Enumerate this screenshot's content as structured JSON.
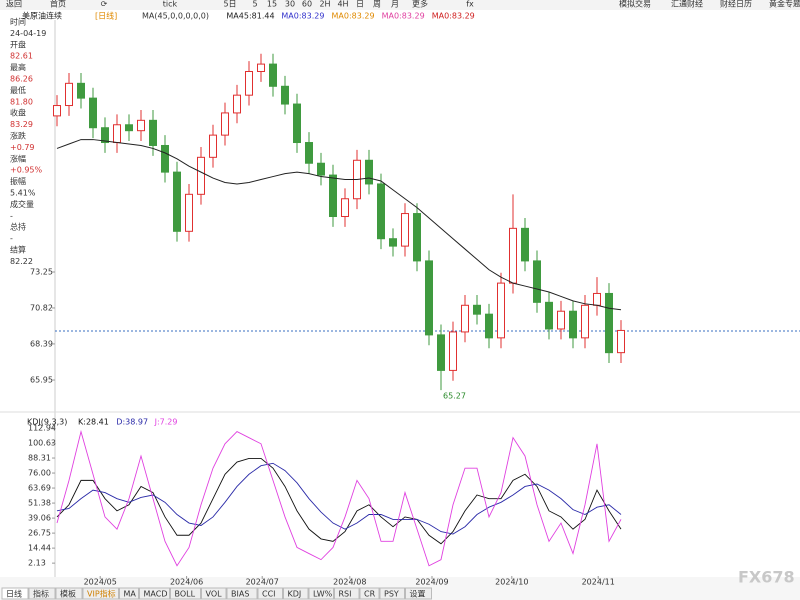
{
  "toolbar": [
    "返回",
    "首页",
    "⟳",
    "tick",
    "5日",
    "5",
    "15",
    "30",
    "60",
    "2H",
    "4H",
    "日",
    "周",
    "月",
    "更多",
    "fx",
    "模拟交易",
    "汇通财经",
    "财经日历",
    "黄金专题"
  ],
  "info": [
    [
      "时间",
      "24-04-19"
    ],
    [
      "开盘",
      "82.61"
    ],
    [
      "最高",
      "86.26"
    ],
    [
      "最低",
      "81.80"
    ],
    [
      "收盘",
      "83.29"
    ],
    [
      "涨跌",
      "+0.79"
    ],
    [
      "涨幅",
      "+0.95%"
    ],
    [
      "振幅",
      "5.41%"
    ],
    [
      "成交量",
      "-"
    ],
    [
      "总持",
      "-"
    ],
    [
      "结算",
      "82.22"
    ]
  ],
  "tabs": [
    "日线",
    "指标",
    "模板",
    "VIP指标",
    "MA",
    "MACD",
    "BOLL",
    "VOL",
    "BIAS",
    "CCI",
    "KDJ",
    "LW%",
    "RSI",
    "CR",
    "PSY",
    "设置"
  ],
  "watermark": "FX678",
  "chart_data": [
    {
      "type": "candlestick",
      "title": "美原油连续",
      "period": "[日线]",
      "legend": [
        {
          "text": "MA(45,0,0,0,0,0)",
          "color": "#333333"
        },
        {
          "text": "MA45:81.44",
          "color": "#222222"
        },
        {
          "text": "MA0:83.29",
          "color": "#3333cc"
        },
        {
          "text": "MA0:83.29",
          "color": "#e08a00"
        },
        {
          "text": "MA0:83.29",
          "color": "#e040a0"
        },
        {
          "text": "MA0:83.29",
          "color": "#d02020"
        }
      ],
      "up_color": "#e03030",
      "down_color": "#3f9a3f",
      "xlim": [
        0,
        62
      ],
      "xticks": [
        {
          "value": 3.6,
          "label": "2024/05"
        },
        {
          "value": 10.8,
          "label": "2024/06"
        },
        {
          "value": 17.1,
          "label": "2024/07"
        },
        {
          "value": 24.4,
          "label": "2024/08"
        },
        {
          "value": 31.25,
          "label": "2024/09"
        },
        {
          "value": 37.9,
          "label": "2024/10"
        },
        {
          "value": 45.1,
          "label": "2024/11"
        }
      ],
      "ylim": [
        64.6,
        90.28
      ],
      "yticks": [
        73.25,
        70.82,
        68.39,
        65.95
      ],
      "open": [
        83.8,
        84.5,
        86.0,
        85.0,
        83.0,
        82.0,
        83.2,
        82.8,
        83.5,
        81.8,
        80.0,
        76.0,
        78.5,
        81.0,
        82.5,
        84.0,
        85.2,
        86.8,
        87.3,
        85.8,
        84.6,
        82.0,
        80.6,
        79.8,
        77.0,
        78.2,
        80.8,
        79.2,
        75.5,
        75.0,
        77.2,
        74.0,
        69.0,
        66.6,
        69.2,
        71.0,
        70.4,
        68.8,
        72.5,
        76.2,
        74.0,
        71.2,
        69.4,
        70.6,
        68.8,
        71.0,
        71.8,
        67.8
      ],
      "high": [
        85.2,
        86.7,
        86.7,
        85.7,
        83.7,
        83.9,
        83.9,
        84.2,
        84.2,
        82.5,
        80.7,
        79.2,
        81.7,
        83.2,
        84.7,
        85.9,
        87.5,
        88.0,
        88.0,
        86.5,
        85.3,
        82.7,
        81.3,
        80.5,
        78.9,
        81.5,
        81.5,
        79.9,
        76.2,
        77.9,
        77.9,
        74.7,
        69.7,
        69.9,
        71.7,
        71.7,
        71.1,
        73.2,
        78.5,
        76.9,
        74.7,
        71.9,
        71.3,
        71.3,
        71.7,
        72.9,
        72.5,
        70.0
      ],
      "low": [
        83.1,
        83.8,
        84.3,
        82.3,
        81.3,
        81.3,
        82.1,
        82.1,
        81.1,
        79.3,
        75.3,
        75.3,
        77.8,
        80.3,
        81.8,
        83.3,
        84.5,
        86.1,
        85.1,
        83.9,
        81.3,
        79.9,
        79.1,
        76.3,
        76.3,
        77.5,
        78.5,
        74.8,
        74.3,
        74.3,
        73.3,
        68.3,
        65.27,
        65.9,
        68.5,
        69.7,
        68.1,
        68.1,
        71.8,
        73.3,
        70.5,
        68.7,
        68.7,
        68.1,
        68.1,
        70.3,
        67.1,
        67.1
      ],
      "close": [
        84.5,
        86.0,
        85.0,
        83.0,
        82.0,
        83.2,
        82.8,
        83.5,
        81.8,
        80.0,
        76.0,
        78.5,
        81.0,
        82.5,
        84.0,
        85.2,
        86.8,
        87.3,
        85.8,
        84.6,
        82.0,
        80.6,
        79.8,
        77.0,
        78.2,
        80.8,
        79.2,
        75.5,
        75.0,
        77.2,
        74.0,
        69.0,
        66.6,
        69.2,
        71.0,
        70.4,
        68.8,
        72.5,
        76.2,
        74.0,
        71.2,
        69.4,
        70.6,
        68.8,
        71.0,
        71.8,
        67.8,
        69.3
      ],
      "ma": {
        "color": "#222222",
        "values": [
          81.6,
          81.9,
          82.2,
          82.2,
          82.1,
          82.0,
          81.9,
          81.8,
          81.6,
          81.3,
          80.9,
          80.4,
          80.0,
          79.6,
          79.3,
          79.2,
          79.3,
          79.5,
          79.7,
          79.9,
          80.0,
          79.9,
          79.7,
          79.6,
          79.5,
          79.5,
          79.6,
          79.4,
          78.8,
          78.2,
          77.6,
          76.9,
          76.2,
          75.5,
          74.8,
          74.1,
          73.4,
          72.9,
          72.5,
          72.3,
          72.1,
          71.9,
          71.6,
          71.3,
          71.1,
          71.0,
          70.8,
          70.7
        ]
      },
      "low_annotation": {
        "index": 32,
        "label": "65.27"
      },
      "current_price_line": 69.26
    },
    {
      "type": "line",
      "title": "KDJ(9,3,3)",
      "xlim": [
        0,
        62
      ],
      "ylim": [
        -7.6,
        119.5
      ],
      "yticks": [
        112.94,
        100.63,
        88.31,
        {
          "value": 76,
          "label": "76.00"
        },
        63.69,
        51.38,
        39.06,
        26.75,
        14.44,
        2.13
      ],
      "series": [
        {
          "name": "K:28.41",
          "color": "#111111",
          "values": [
            40,
            50,
            70,
            70,
            55,
            45,
            50,
            65,
            60,
            40,
            25,
            25,
            35,
            55,
            75,
            85,
            88,
            88,
            80,
            65,
            45,
            30,
            22,
            20,
            28,
            45,
            50,
            40,
            32,
            40,
            38,
            25,
            18,
            28,
            45,
            58,
            55,
            55,
            70,
            75,
            65,
            45,
            40,
            30,
            38,
            62,
            45,
            30
          ]
        },
        {
          "name": "D:38.97",
          "color": "#2a2aa8",
          "values": [
            45,
            47,
            55,
            62,
            60,
            55,
            52,
            56,
            58,
            52,
            42,
            35,
            33,
            40,
            52,
            65,
            75,
            82,
            84,
            78,
            68,
            55,
            44,
            35,
            30,
            35,
            42,
            42,
            38,
            38,
            38,
            34,
            28,
            26,
            32,
            42,
            48,
            52,
            58,
            65,
            67,
            62,
            55,
            46,
            42,
            48,
            50,
            42
          ]
        },
        {
          "name": "J:7.29",
          "color": "#e040e0",
          "values": [
            35,
            70,
            110,
            75,
            40,
            30,
            55,
            90,
            55,
            20,
            0,
            15,
            50,
            80,
            100,
            110,
            105,
            100,
            70,
            40,
            15,
            10,
            5,
            15,
            40,
            70,
            55,
            20,
            20,
            60,
            30,
            0,
            5,
            50,
            80,
            80,
            40,
            60,
            105,
            90,
            50,
            20,
            35,
            10,
            50,
            100,
            20,
            38
          ]
        }
      ]
    }
  ]
}
